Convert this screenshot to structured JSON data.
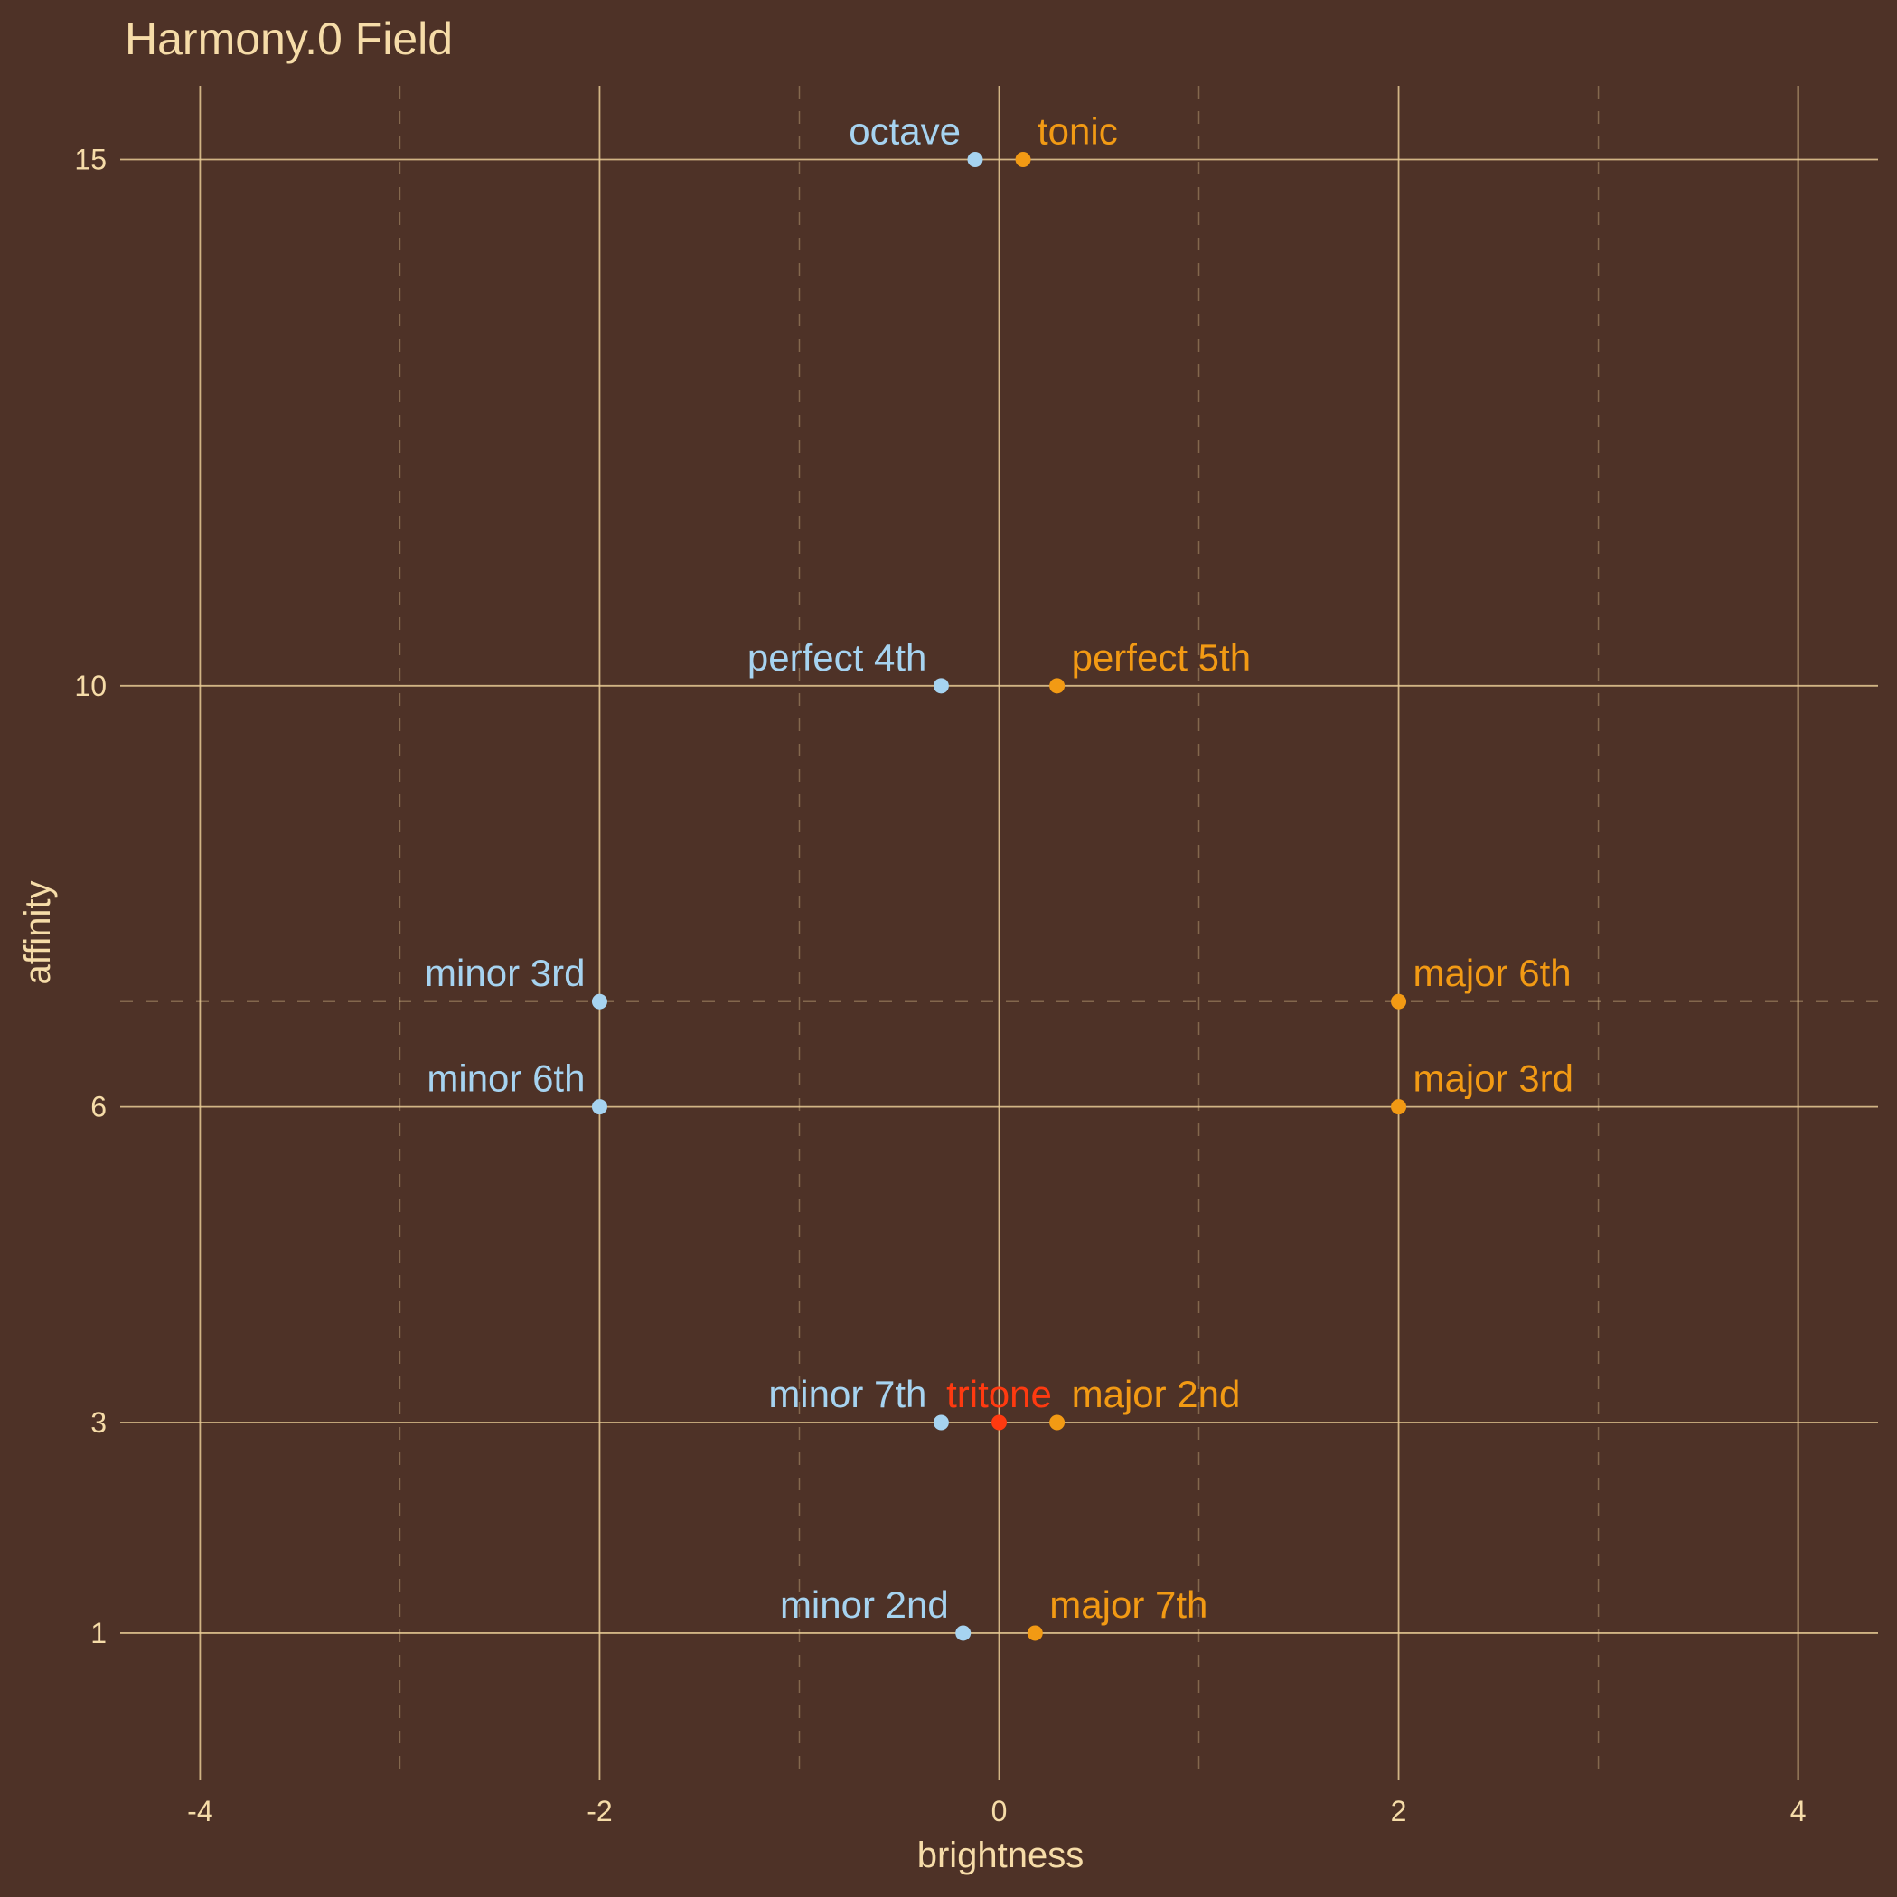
{
  "chart_data": {
    "type": "scatter",
    "title": "Harmony.0 Field",
    "xlabel": "brightness",
    "ylabel": "affinity",
    "xlim": [
      -4.4,
      4.4
    ],
    "ylim": [
      -0.4,
      15.7
    ],
    "x_ticks": [
      -4,
      -2,
      0,
      2,
      4
    ],
    "y_ticks": [
      1,
      3,
      6,
      10,
      15
    ],
    "x_minor": [
      -3,
      -1,
      1,
      3
    ],
    "y_minor": [
      7
    ],
    "colors": {
      "background": "#4e3227",
      "grid": "#e9cb95",
      "text": "#f6dca8",
      "minor": "#a6d3f0",
      "major": "#f29a14",
      "tritone": "#ff3a10"
    },
    "points": [
      {
        "label": "octave",
        "x": -0.12,
        "y": 15,
        "group": "minor"
      },
      {
        "label": "tonic",
        "x": 0.12,
        "y": 15,
        "group": "major"
      },
      {
        "label": "perfect 4th",
        "x": -0.29,
        "y": 10,
        "group": "minor"
      },
      {
        "label": "perfect 5th",
        "x": 0.29,
        "y": 10,
        "group": "major"
      },
      {
        "label": "minor 3rd",
        "x": -2,
        "y": 7,
        "group": "minor"
      },
      {
        "label": "major 6th",
        "x": 2,
        "y": 7,
        "group": "major"
      },
      {
        "label": "minor 6th",
        "x": -2,
        "y": 6,
        "group": "minor"
      },
      {
        "label": "major 3rd",
        "x": 2,
        "y": 6,
        "group": "major"
      },
      {
        "label": "minor 7th",
        "x": -0.29,
        "y": 3,
        "group": "minor"
      },
      {
        "label": "tritone",
        "x": 0,
        "y": 3,
        "group": "tritone"
      },
      {
        "label": "major 2nd",
        "x": 0.29,
        "y": 3,
        "group": "major"
      },
      {
        "label": "minor 2nd",
        "x": -0.18,
        "y": 1,
        "group": "minor"
      },
      {
        "label": "major 7th",
        "x": 0.18,
        "y": 1,
        "group": "major"
      }
    ]
  }
}
